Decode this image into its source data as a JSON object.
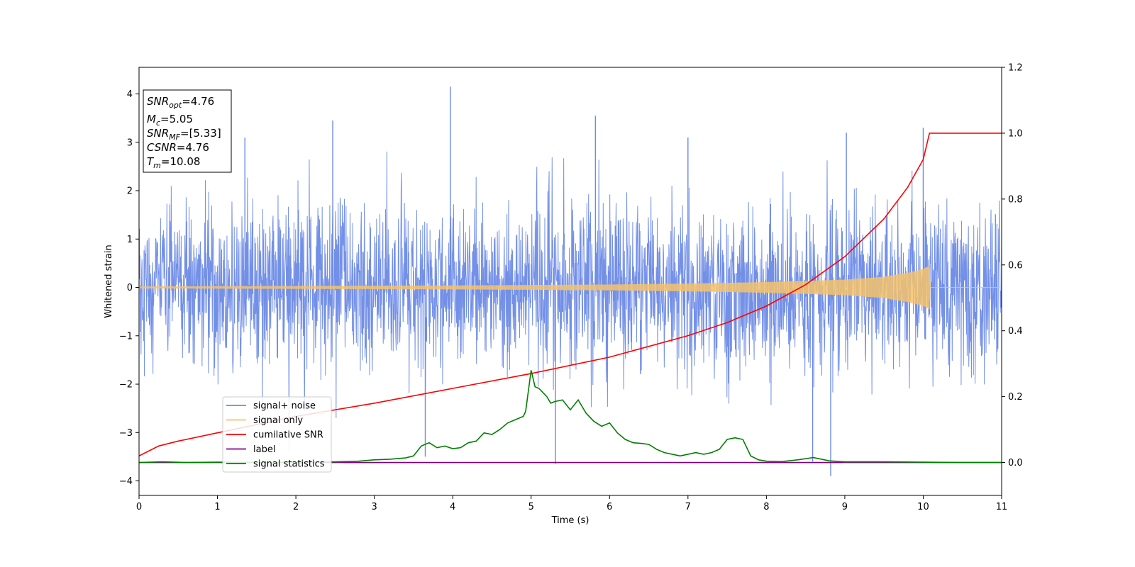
{
  "chart_data": {
    "type": "line",
    "xlabel": "Time (s)",
    "ylabel": "Whitened strain",
    "xlim": [
      0,
      11
    ],
    "ylim_left": [
      -4.3,
      4.55
    ],
    "ylim_right": [
      -0.1,
      1.2
    ],
    "x_ticks": [
      0,
      1,
      2,
      3,
      4,
      5,
      6,
      7,
      8,
      9,
      10,
      11
    ],
    "y_left_ticks": [
      -4,
      -3,
      -2,
      -1,
      0,
      1,
      2,
      3,
      4
    ],
    "y_right_ticks": [
      "0.0",
      "0.2",
      "0.4",
      "0.6",
      "0.8",
      "1.0",
      "1.2"
    ],
    "grid": false,
    "legend_position": "lower-left",
    "legend": [
      {
        "name": "signal+ noise",
        "color": "#6b8ae6"
      },
      {
        "name": "signal only",
        "color": "#f5c26b"
      },
      {
        "name": "cumilative SNR",
        "color": "#ff0000"
      },
      {
        "name": "label",
        "color": "#800080"
      },
      {
        "name": "signal statistics",
        "color": "#008000"
      }
    ],
    "info_box": [
      {
        "main": "SNR",
        "sub": "opt",
        "rest": "=4.76"
      },
      {
        "main": "M",
        "sub": "c",
        "rest": "=5.05"
      },
      {
        "main": "SNR",
        "sub": "MF",
        "rest": "=[5.33]"
      },
      {
        "main": "CSNR",
        "sub": "",
        "rest": "=4.76"
      },
      {
        "main": "T",
        "sub": "m",
        "rest": "=10.08"
      }
    ],
    "series": [
      {
        "name": "signal+ noise",
        "axis": "left",
        "color": "#6b8ae6",
        "noise_std": 0.85,
        "x_range": [
          0,
          11
        ],
        "spikes": [
          [
            3.97,
            4.15
          ],
          [
            2.47,
            3.45
          ],
          [
            5.82,
            3.55
          ],
          [
            8.82,
            -3.9
          ],
          [
            5.31,
            -3.65
          ],
          [
            8.59,
            -3.6
          ],
          [
            10.0,
            3.3
          ],
          [
            9.02,
            3.2
          ],
          [
            3.65,
            -3.5
          ],
          [
            1.35,
            3.1
          ],
          [
            7.0,
            3.1
          ]
        ]
      },
      {
        "name": "signal only",
        "axis": "left",
        "color": "#f5c26b",
        "envelope": [
          [
            0,
            0.02
          ],
          [
            2,
            0.03
          ],
          [
            4,
            0.04
          ],
          [
            6,
            0.06
          ],
          [
            7,
            0.08
          ],
          [
            8,
            0.11
          ],
          [
            9,
            0.16
          ],
          [
            9.5,
            0.22
          ],
          [
            9.8,
            0.3
          ],
          [
            10.0,
            0.38
          ],
          [
            10.08,
            0.45
          ],
          [
            10.09,
            0.0
          ],
          [
            11,
            0.0
          ]
        ]
      },
      {
        "name": "cumilative SNR",
        "axis": "right",
        "color": "#ff0000",
        "x": [
          0,
          0.25,
          0.5,
          1,
          2,
          3,
          4,
          5,
          6,
          7,
          7.5,
          8,
          8.5,
          9,
          9.5,
          9.8,
          10.0,
          10.08,
          10.09,
          11
        ],
        "values": [
          0.02,
          0.05,
          0.065,
          0.09,
          0.14,
          0.18,
          0.225,
          0.27,
          0.32,
          0.385,
          0.425,
          0.475,
          0.54,
          0.625,
          0.74,
          0.835,
          0.92,
          1.0,
          1.0,
          1.0
        ]
      },
      {
        "name": "label",
        "axis": "right",
        "color": "#800080",
        "x": [
          0,
          11
        ],
        "values": [
          0.0,
          0.0
        ]
      },
      {
        "name": "signal statistics",
        "axis": "right",
        "color": "#008000",
        "x": [
          0,
          0.3,
          0.6,
          1.0,
          1.5,
          2.0,
          2.5,
          2.8,
          3.0,
          3.2,
          3.4,
          3.5,
          3.6,
          3.7,
          3.8,
          3.9,
          4.0,
          4.1,
          4.2,
          4.3,
          4.4,
          4.5,
          4.6,
          4.7,
          4.8,
          4.9,
          4.93,
          5.0,
          5.05,
          5.1,
          5.2,
          5.25,
          5.3,
          5.4,
          5.5,
          5.6,
          5.7,
          5.8,
          5.9,
          6.0,
          6.1,
          6.2,
          6.3,
          6.4,
          6.5,
          6.6,
          6.7,
          6.8,
          6.9,
          7.0,
          7.1,
          7.2,
          7.3,
          7.4,
          7.5,
          7.6,
          7.7,
          7.8,
          7.9,
          8.0,
          8.2,
          8.4,
          8.6,
          8.8,
          9.0,
          9.5,
          10.0,
          10.5,
          11.0
        ],
        "values": [
          0.0,
          0.002,
          0.0,
          0.001,
          0.0,
          0.001,
          0.002,
          0.004,
          0.008,
          0.01,
          0.014,
          0.02,
          0.05,
          0.06,
          0.045,
          0.05,
          0.042,
          0.045,
          0.06,
          0.065,
          0.09,
          0.085,
          0.1,
          0.12,
          0.13,
          0.14,
          0.155,
          0.28,
          0.23,
          0.225,
          0.2,
          0.18,
          0.185,
          0.19,
          0.16,
          0.19,
          0.15,
          0.125,
          0.11,
          0.12,
          0.09,
          0.07,
          0.06,
          0.058,
          0.055,
          0.04,
          0.03,
          0.025,
          0.02,
          0.025,
          0.03,
          0.025,
          0.03,
          0.04,
          0.07,
          0.075,
          0.07,
          0.02,
          0.008,
          0.004,
          0.003,
          0.008,
          0.015,
          0.005,
          0.002,
          0.002,
          0.001,
          0.0,
          0.0
        ]
      }
    ]
  }
}
